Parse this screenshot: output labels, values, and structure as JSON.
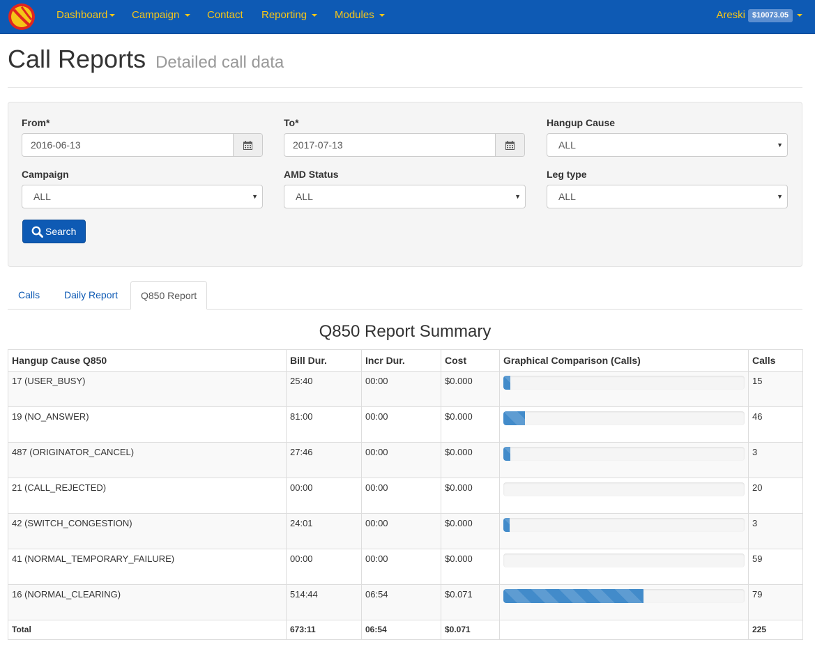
{
  "nav": {
    "items": [
      {
        "label": "Dashboard",
        "dropdown": true
      },
      {
        "label": "Campaign",
        "dropdown": true
      },
      {
        "label": "Contact",
        "dropdown": false
      },
      {
        "label": "Reporting",
        "dropdown": true
      },
      {
        "label": "Modules",
        "dropdown": true
      }
    ],
    "user": {
      "name": "Areski",
      "balance": "$10073.05"
    }
  },
  "header": {
    "title": "Call Reports",
    "subtitle": "Detailed call data"
  },
  "filters": {
    "from": {
      "label": "From*",
      "value": "2016-06-13"
    },
    "to": {
      "label": "To*",
      "value": "2017-07-13"
    },
    "hangup_cause": {
      "label": "Hangup Cause",
      "value": "ALL"
    },
    "campaign": {
      "label": "Campaign",
      "value": "ALL"
    },
    "amd_status": {
      "label": "AMD Status",
      "value": "ALL"
    },
    "leg_type": {
      "label": "Leg type",
      "value": "ALL"
    },
    "search_label": "Search"
  },
  "tabs": [
    {
      "label": "Calls",
      "active": false
    },
    {
      "label": "Daily Report",
      "active": false
    },
    {
      "label": "Q850 Report",
      "active": true
    }
  ],
  "summary": {
    "title": "Q850 Report Summary",
    "columns": [
      "Hangup Cause Q850",
      "Bill Dur.",
      "Incr Dur.",
      "Cost",
      "Graphical Comparison (Calls)",
      "Calls"
    ],
    "rows": [
      {
        "cause": "17 (USER_BUSY)",
        "bill": "25:40",
        "incr": "00:00",
        "cost": "$0.000",
        "calls": "15",
        "bar": 0.03
      },
      {
        "cause": "19 (NO_ANSWER)",
        "bill": "81:00",
        "incr": "00:00",
        "cost": "$0.000",
        "calls": "46",
        "bar": 0.09
      },
      {
        "cause": "487 (ORIGINATOR_CANCEL)",
        "bill": "27:46",
        "incr": "00:00",
        "cost": "$0.000",
        "calls": "3",
        "bar": 0.03
      },
      {
        "cause": "21 (CALL_REJECTED)",
        "bill": "00:00",
        "incr": "00:00",
        "cost": "$0.000",
        "calls": "20",
        "bar": 0
      },
      {
        "cause": "42 (SWITCH_CONGESTION)",
        "bill": "24:01",
        "incr": "00:00",
        "cost": "$0.000",
        "calls": "3",
        "bar": 0.025
      },
      {
        "cause": "41 (NORMAL_TEMPORARY_FAILURE)",
        "bill": "00:00",
        "incr": "00:00",
        "cost": "$0.000",
        "calls": "59",
        "bar": 0
      },
      {
        "cause": "16 (NORMAL_CLEARING)",
        "bill": "514:44",
        "incr": "06:54",
        "cost": "$0.071",
        "calls": "79",
        "bar": 0.58
      }
    ],
    "total": {
      "label": "Total",
      "bill": "673:11",
      "incr": "06:54",
      "cost": "$0.071",
      "calls": "225"
    }
  }
}
